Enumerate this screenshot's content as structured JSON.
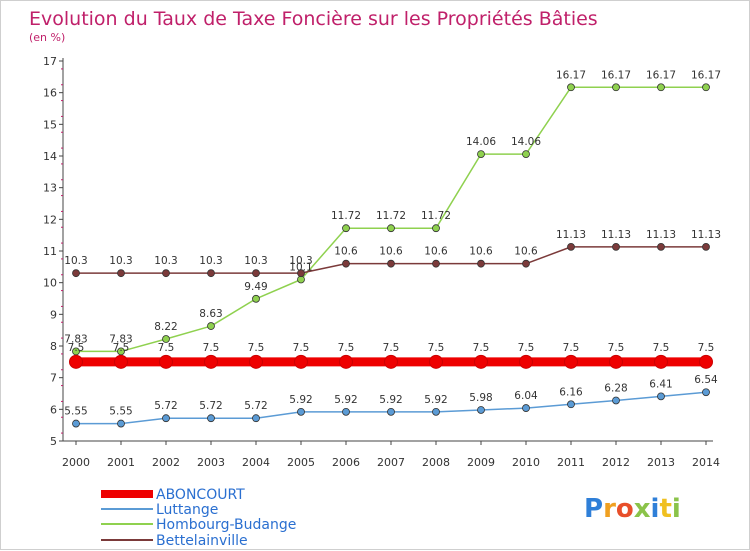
{
  "chart_data": {
    "type": "line",
    "title": "Evolution du Taux de Taxe Foncière sur les Propriétés Bâties",
    "subtitle": "(en %)",
    "xlabel": "",
    "ylabel": "",
    "ylim": [
      5,
      17
    ],
    "yticks": [
      "5",
      "6",
      "7",
      "8",
      "9",
      "10",
      "11",
      "12",
      "13",
      "14",
      "15",
      "16",
      "17"
    ],
    "categories": [
      "2000",
      "2001",
      "2002",
      "2003",
      "2004",
      "2005",
      "2006",
      "2007",
      "2008",
      "2009",
      "2010",
      "2011",
      "2012",
      "2013",
      "2014"
    ],
    "grid": false,
    "legend_position": "bottom-left",
    "series": [
      {
        "name": "ABONCOURT",
        "color": "#ee0000",
        "values": [
          7.5,
          7.5,
          7.5,
          7.5,
          7.5,
          7.5,
          7.5,
          7.5,
          7.5,
          7.5,
          7.5,
          7.5,
          7.5,
          7.5,
          7.5
        ],
        "labels": [
          "7.5",
          "7.5",
          "7.5",
          "7.5",
          "7.5",
          "7.5",
          "7.5",
          "7.5",
          "7.5",
          "7.5",
          "7.5",
          "7.5",
          "7.5",
          "7.5",
          "7.5"
        ]
      },
      {
        "name": "Luttange",
        "color": "#5b9bd5",
        "values": [
          5.55,
          5.55,
          5.72,
          5.72,
          5.72,
          5.92,
          5.92,
          5.92,
          5.92,
          5.98,
          6.04,
          6.16,
          6.28,
          6.41,
          6.54
        ],
        "labels": [
          "5.55",
          "5.55",
          "5.72",
          "5.72",
          "5.72",
          "5.92",
          "5.92",
          "5.92",
          "5.92",
          "5.98",
          "6.04",
          "6.16",
          "6.28",
          "6.41",
          "6.54"
        ]
      },
      {
        "name": "Hombourg-Budange",
        "color": "#8fd14f",
        "values": [
          7.83,
          7.83,
          8.22,
          8.63,
          9.49,
          10.1,
          11.72,
          11.72,
          11.72,
          14.06,
          14.06,
          16.17,
          16.17,
          16.17,
          16.17
        ],
        "labels": [
          "7.83",
          "7.83",
          "8.22",
          "8.63",
          "9.49",
          "10.1",
          "11.72",
          "11.72",
          "11.72",
          "14.06",
          "14.06",
          "16.17",
          "16.17",
          "16.17",
          "16.17"
        ]
      },
      {
        "name": "Bettelainville",
        "color": "#7b3a3a",
        "values": [
          10.3,
          10.3,
          10.3,
          10.3,
          10.3,
          10.3,
          10.6,
          10.6,
          10.6,
          10.6,
          10.6,
          11.13,
          11.13,
          11.13,
          11.13
        ],
        "labels": [
          "10.3",
          "10.3",
          "10.3",
          "10.3",
          "10.3",
          "10.3",
          "10.6",
          "10.6",
          "10.6",
          "10.6",
          "10.6",
          "11.13",
          "11.13",
          "11.13",
          "11.13"
        ]
      }
    ]
  },
  "logo": {
    "text": "Proxiti"
  },
  "colors": {
    "title": "#c0206a",
    "legend_text": "#2a6fd0",
    "axis": "#444444",
    "tick_marks": "#c0206a"
  }
}
